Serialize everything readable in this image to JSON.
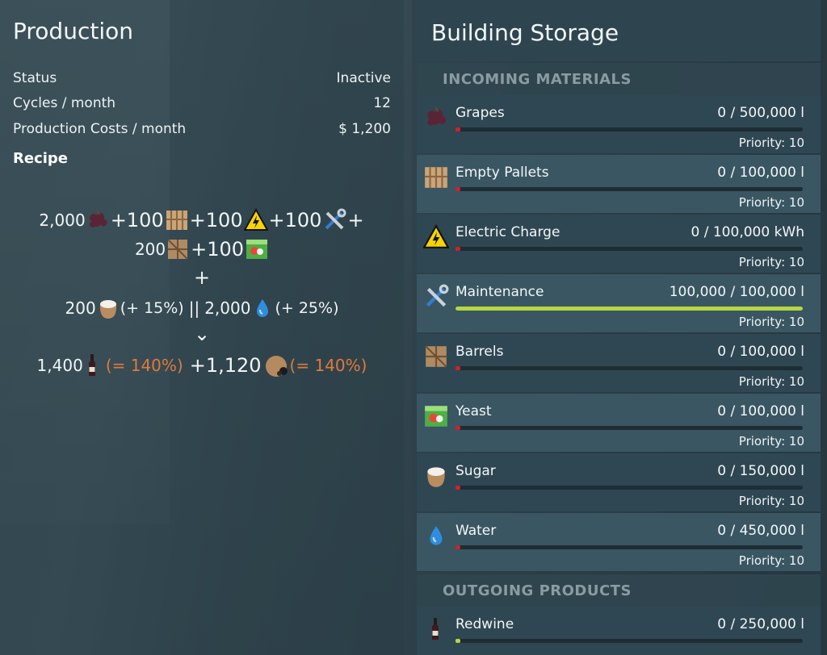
{
  "production": {
    "title": "Production",
    "status_label": "Status",
    "status_value": "Inactive",
    "cycles_label": "Cycles / month",
    "cycles_value": "12",
    "costs_label": "Production Costs / month",
    "costs_value": "$ 1,200",
    "recipe_label": "Recipe",
    "recipe": {
      "line1": [
        "2,000",
        "+100",
        "+100",
        "+100",
        "+"
      ],
      "line2": [
        "200",
        "+100"
      ],
      "plus": "+",
      "line3_sugar": "200",
      "line3_sugar_pct": "(+ 15%)",
      "line3_sep": "||",
      "line3_water": "2,000",
      "line3_water_pct": "(+ 25%)",
      "arrow": "⌄",
      "out_wine": "1,400",
      "out_wine_pct": "(= 140%)",
      "out_plus": "+1,120",
      "out_second_pct": "(= 140%)"
    }
  },
  "storage": {
    "title": "Building Storage",
    "incoming_label": "INCOMING MATERIALS",
    "outgoing_label": "OUTGOING PRODUCTS",
    "incoming": [
      {
        "name": "Grapes",
        "amount": "0  / 500,000 l",
        "priority": "Priority: 10",
        "icon": "grapes-icon",
        "fill": 0
      },
      {
        "name": "Empty Pallets",
        "amount": "0  / 100,000 l",
        "priority": "Priority: 10",
        "icon": "pallet-icon",
        "fill": 0
      },
      {
        "name": "Electric Charge",
        "amount": "0  / 100,000 kWh",
        "priority": "Priority: 10",
        "icon": "electric-warning-icon",
        "fill": 0
      },
      {
        "name": "Maintenance",
        "amount": "100,000  / 100,000 l",
        "priority": "Priority: 10",
        "icon": "maintenance-tools-icon",
        "fill": 1.0
      },
      {
        "name": "Barrels",
        "amount": "0  / 100,000 l",
        "priority": "Priority: 10",
        "icon": "barrel-crate-icon",
        "fill": 0
      },
      {
        "name": "Yeast",
        "amount": "0  / 100,000 l",
        "priority": "Priority: 10",
        "icon": "yeast-box-icon",
        "fill": 0
      },
      {
        "name": "Sugar",
        "amount": "0  / 150,000 l",
        "priority": "Priority: 10",
        "icon": "sugar-sack-icon",
        "fill": 0
      },
      {
        "name": "Water",
        "amount": "0  / 450,000 l",
        "priority": "Priority: 10",
        "icon": "water-drop-icon",
        "fill": 0
      }
    ],
    "outgoing": [
      {
        "name": "Redwine",
        "amount": "0  / 250,000 l",
        "icon": "wine-bottle-icon",
        "fill": 0
      }
    ]
  },
  "colors": {
    "fill_bar": "#b6d640",
    "empty_marker": "#d2202a",
    "orange_pct": "#e07a3a"
  }
}
